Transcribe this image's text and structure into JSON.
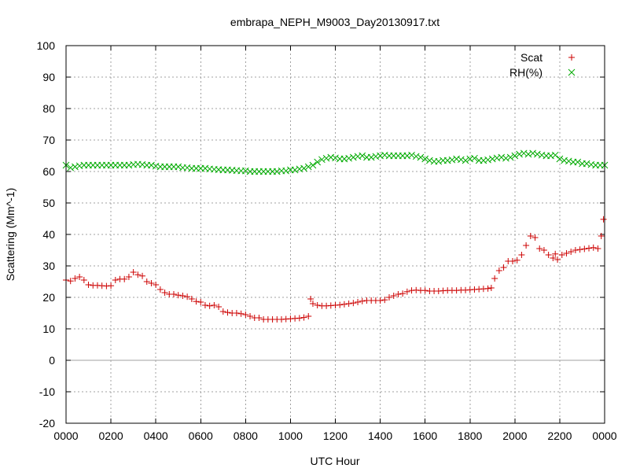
{
  "chart_data": {
    "type": "scatter",
    "title": "embrapa_NEPH_M9003_Day20130917.txt",
    "xlabel": "UTC Hour",
    "ylabel": "Scattering (Mm^-1)",
    "xlim": [
      0,
      24
    ],
    "ylim": [
      -20,
      100
    ],
    "x_tick_values": [
      0,
      2,
      4,
      6,
      8,
      10,
      12,
      14,
      16,
      18,
      20,
      22,
      24
    ],
    "x_tick_labels": [
      "0000",
      "0200",
      "0400",
      "0600",
      "0800",
      "1000",
      "1200",
      "1400",
      "1600",
      "1800",
      "2000",
      "2200",
      "0000"
    ],
    "y_tick_values": [
      -20,
      -10,
      0,
      10,
      20,
      30,
      40,
      50,
      60,
      70,
      80,
      90,
      100
    ],
    "y_tick_labels": [
      "-20",
      "-10",
      "0",
      "10",
      "20",
      "30",
      "40",
      "50",
      "60",
      "70",
      "80",
      "90",
      "100"
    ],
    "grid": true,
    "zero_line": true,
    "legend_position": "top-right",
    "series": [
      {
        "name": "Scat",
        "color": "#cc0000",
        "marker": "plus",
        "points": [
          [
            0.0,
            25.5
          ],
          [
            0.2,
            25.2
          ],
          [
            0.4,
            26.0
          ],
          [
            0.6,
            26.5
          ],
          [
            0.8,
            25.5
          ],
          [
            1.0,
            24.0
          ],
          [
            1.2,
            23.8
          ],
          [
            1.4,
            23.8
          ],
          [
            1.6,
            23.7
          ],
          [
            1.8,
            23.6
          ],
          [
            2.0,
            23.7
          ],
          [
            2.2,
            25.5
          ],
          [
            2.4,
            25.8
          ],
          [
            2.6,
            25.8
          ],
          [
            2.8,
            26.5
          ],
          [
            3.0,
            28.0
          ],
          [
            3.2,
            27.2
          ],
          [
            3.4,
            26.8
          ],
          [
            3.6,
            25.0
          ],
          [
            3.8,
            24.5
          ],
          [
            4.0,
            24.0
          ],
          [
            4.2,
            22.5
          ],
          [
            4.4,
            21.5
          ],
          [
            4.6,
            21.0
          ],
          [
            4.8,
            21.0
          ],
          [
            5.0,
            20.7
          ],
          [
            5.2,
            20.5
          ],
          [
            5.4,
            20.2
          ],
          [
            5.6,
            19.5
          ],
          [
            5.8,
            18.7
          ],
          [
            6.0,
            18.5
          ],
          [
            6.2,
            17.5
          ],
          [
            6.4,
            17.3
          ],
          [
            6.6,
            17.5
          ],
          [
            6.8,
            17.0
          ],
          [
            7.0,
            15.5
          ],
          [
            7.2,
            15.2
          ],
          [
            7.4,
            15.0
          ],
          [
            7.6,
            15.0
          ],
          [
            7.8,
            14.8
          ],
          [
            8.0,
            14.5
          ],
          [
            8.2,
            14.0
          ],
          [
            8.4,
            13.5
          ],
          [
            8.6,
            13.5
          ],
          [
            8.8,
            13.0
          ],
          [
            9.0,
            13.0
          ],
          [
            9.2,
            13.0
          ],
          [
            9.4,
            13.0
          ],
          [
            9.6,
            13.0
          ],
          [
            9.8,
            13.1
          ],
          [
            10.0,
            13.2
          ],
          [
            10.2,
            13.3
          ],
          [
            10.4,
            13.4
          ],
          [
            10.6,
            13.6
          ],
          [
            10.8,
            14.0
          ],
          [
            10.9,
            19.5
          ],
          [
            11.0,
            18.0
          ],
          [
            11.2,
            17.5
          ],
          [
            11.4,
            17.3
          ],
          [
            11.6,
            17.3
          ],
          [
            11.8,
            17.4
          ],
          [
            12.0,
            17.5
          ],
          [
            12.2,
            17.6
          ],
          [
            12.4,
            17.8
          ],
          [
            12.6,
            18.0
          ],
          [
            12.8,
            18.2
          ],
          [
            13.0,
            18.5
          ],
          [
            13.2,
            18.8
          ],
          [
            13.4,
            19.0
          ],
          [
            13.6,
            19.0
          ],
          [
            13.8,
            19.0
          ],
          [
            14.0,
            19.0
          ],
          [
            14.2,
            19.2
          ],
          [
            14.4,
            20.0
          ],
          [
            14.6,
            20.5
          ],
          [
            14.8,
            21.0
          ],
          [
            15.0,
            21.2
          ],
          [
            15.2,
            21.8
          ],
          [
            15.4,
            22.2
          ],
          [
            15.6,
            22.3
          ],
          [
            15.8,
            22.2
          ],
          [
            16.0,
            22.2
          ],
          [
            16.2,
            22.0
          ],
          [
            16.4,
            22.0
          ],
          [
            16.6,
            22.0
          ],
          [
            16.8,
            22.1
          ],
          [
            17.0,
            22.2
          ],
          [
            17.2,
            22.2
          ],
          [
            17.4,
            22.2
          ],
          [
            17.6,
            22.3
          ],
          [
            17.8,
            22.3
          ],
          [
            18.0,
            22.4
          ],
          [
            18.2,
            22.5
          ],
          [
            18.4,
            22.6
          ],
          [
            18.6,
            22.7
          ],
          [
            18.8,
            22.8
          ],
          [
            18.95,
            23.0
          ],
          [
            19.1,
            26.0
          ],
          [
            19.3,
            28.5
          ],
          [
            19.5,
            29.5
          ],
          [
            19.7,
            31.5
          ],
          [
            19.9,
            31.5
          ],
          [
            20.1,
            31.8
          ],
          [
            20.3,
            33.5
          ],
          [
            20.5,
            36.5
          ],
          [
            20.7,
            39.5
          ],
          [
            20.9,
            39.0
          ],
          [
            21.1,
            35.5
          ],
          [
            21.3,
            35.0
          ],
          [
            21.5,
            33.5
          ],
          [
            21.7,
            32.5
          ],
          [
            21.8,
            33.8
          ],
          [
            21.9,
            32.0
          ],
          [
            22.1,
            33.5
          ],
          [
            22.3,
            34.0
          ],
          [
            22.5,
            34.5
          ],
          [
            22.7,
            35.0
          ],
          [
            22.9,
            35.2
          ],
          [
            23.1,
            35.4
          ],
          [
            23.3,
            35.6
          ],
          [
            23.5,
            35.8
          ],
          [
            23.7,
            35.5
          ],
          [
            23.85,
            39.5
          ],
          [
            23.95,
            44.8
          ]
        ]
      },
      {
        "name": "RH(%)",
        "color": "#00aa00",
        "marker": "cross",
        "points": [
          [
            0.0,
            62.0
          ],
          [
            0.2,
            61.2
          ],
          [
            0.4,
            61.5
          ],
          [
            0.6,
            61.8
          ],
          [
            0.8,
            62.0
          ],
          [
            1.0,
            62.0
          ],
          [
            1.2,
            62.0
          ],
          [
            1.4,
            62.0
          ],
          [
            1.6,
            62.0
          ],
          [
            1.8,
            62.0
          ],
          [
            2.0,
            62.0
          ],
          [
            2.2,
            62.0
          ],
          [
            2.4,
            62.0
          ],
          [
            2.6,
            62.0
          ],
          [
            2.8,
            62.0
          ],
          [
            3.0,
            62.2
          ],
          [
            3.2,
            62.3
          ],
          [
            3.4,
            62.2
          ],
          [
            3.6,
            62.0
          ],
          [
            3.8,
            62.0
          ],
          [
            4.0,
            61.7
          ],
          [
            4.2,
            61.5
          ],
          [
            4.4,
            61.5
          ],
          [
            4.6,
            61.5
          ],
          [
            4.8,
            61.5
          ],
          [
            5.0,
            61.5
          ],
          [
            5.2,
            61.2
          ],
          [
            5.4,
            61.2
          ],
          [
            5.6,
            61.0
          ],
          [
            5.8,
            61.0
          ],
          [
            6.0,
            61.0
          ],
          [
            6.2,
            61.0
          ],
          [
            6.4,
            60.8
          ],
          [
            6.6,
            60.7
          ],
          [
            6.8,
            60.6
          ],
          [
            7.0,
            60.5
          ],
          [
            7.2,
            60.5
          ],
          [
            7.4,
            60.4
          ],
          [
            7.6,
            60.3
          ],
          [
            7.8,
            60.2
          ],
          [
            8.0,
            60.2
          ],
          [
            8.2,
            60.0
          ],
          [
            8.4,
            60.0
          ],
          [
            8.6,
            60.0
          ],
          [
            8.8,
            60.0
          ],
          [
            9.0,
            60.0
          ],
          [
            9.2,
            60.0
          ],
          [
            9.4,
            60.0
          ],
          [
            9.6,
            60.2
          ],
          [
            9.8,
            60.2
          ],
          [
            10.0,
            60.5
          ],
          [
            10.2,
            60.5
          ],
          [
            10.4,
            60.8
          ],
          [
            10.6,
            61.0
          ],
          [
            10.8,
            61.5
          ],
          [
            11.0,
            62.0
          ],
          [
            11.2,
            63.0
          ],
          [
            11.4,
            63.8
          ],
          [
            11.6,
            64.2
          ],
          [
            11.8,
            64.5
          ],
          [
            12.0,
            64.3
          ],
          [
            12.2,
            64.0
          ],
          [
            12.4,
            64.0
          ],
          [
            12.6,
            64.2
          ],
          [
            12.8,
            64.5
          ],
          [
            13.0,
            64.8
          ],
          [
            13.2,
            65.0
          ],
          [
            13.4,
            64.5
          ],
          [
            13.6,
            64.5
          ],
          [
            13.8,
            64.8
          ],
          [
            14.0,
            65.0
          ],
          [
            14.2,
            65.2
          ],
          [
            14.4,
            65.0
          ],
          [
            14.6,
            65.0
          ],
          [
            14.8,
            65.0
          ],
          [
            15.0,
            65.0
          ],
          [
            15.2,
            65.0
          ],
          [
            15.4,
            65.2
          ],
          [
            15.6,
            64.8
          ],
          [
            15.8,
            64.5
          ],
          [
            16.0,
            64.0
          ],
          [
            16.2,
            63.5
          ],
          [
            16.4,
            63.2
          ],
          [
            16.6,
            63.2
          ],
          [
            16.8,
            63.5
          ],
          [
            17.0,
            63.5
          ],
          [
            17.2,
            63.7
          ],
          [
            17.4,
            64.0
          ],
          [
            17.6,
            63.8
          ],
          [
            17.8,
            63.5
          ],
          [
            18.0,
            64.0
          ],
          [
            18.2,
            64.2
          ],
          [
            18.4,
            63.5
          ],
          [
            18.6,
            63.5
          ],
          [
            18.8,
            63.7
          ],
          [
            19.0,
            64.0
          ],
          [
            19.2,
            64.3
          ],
          [
            19.4,
            64.5
          ],
          [
            19.6,
            64.2
          ],
          [
            19.8,
            64.5
          ],
          [
            20.0,
            65.0
          ],
          [
            20.2,
            65.5
          ],
          [
            20.4,
            65.8
          ],
          [
            20.6,
            65.5
          ],
          [
            20.8,
            65.8
          ],
          [
            21.0,
            65.5
          ],
          [
            21.2,
            65.2
          ],
          [
            21.4,
            65.0
          ],
          [
            21.6,
            65.0
          ],
          [
            21.8,
            65.2
          ],
          [
            22.0,
            64.0
          ],
          [
            22.2,
            63.5
          ],
          [
            22.4,
            63.3
          ],
          [
            22.6,
            63.0
          ],
          [
            22.8,
            63.0
          ],
          [
            23.0,
            62.5
          ],
          [
            23.2,
            62.5
          ],
          [
            23.4,
            62.2
          ],
          [
            23.6,
            62.0
          ],
          [
            23.8,
            62.0
          ],
          [
            24.0,
            62.0
          ]
        ]
      }
    ]
  }
}
